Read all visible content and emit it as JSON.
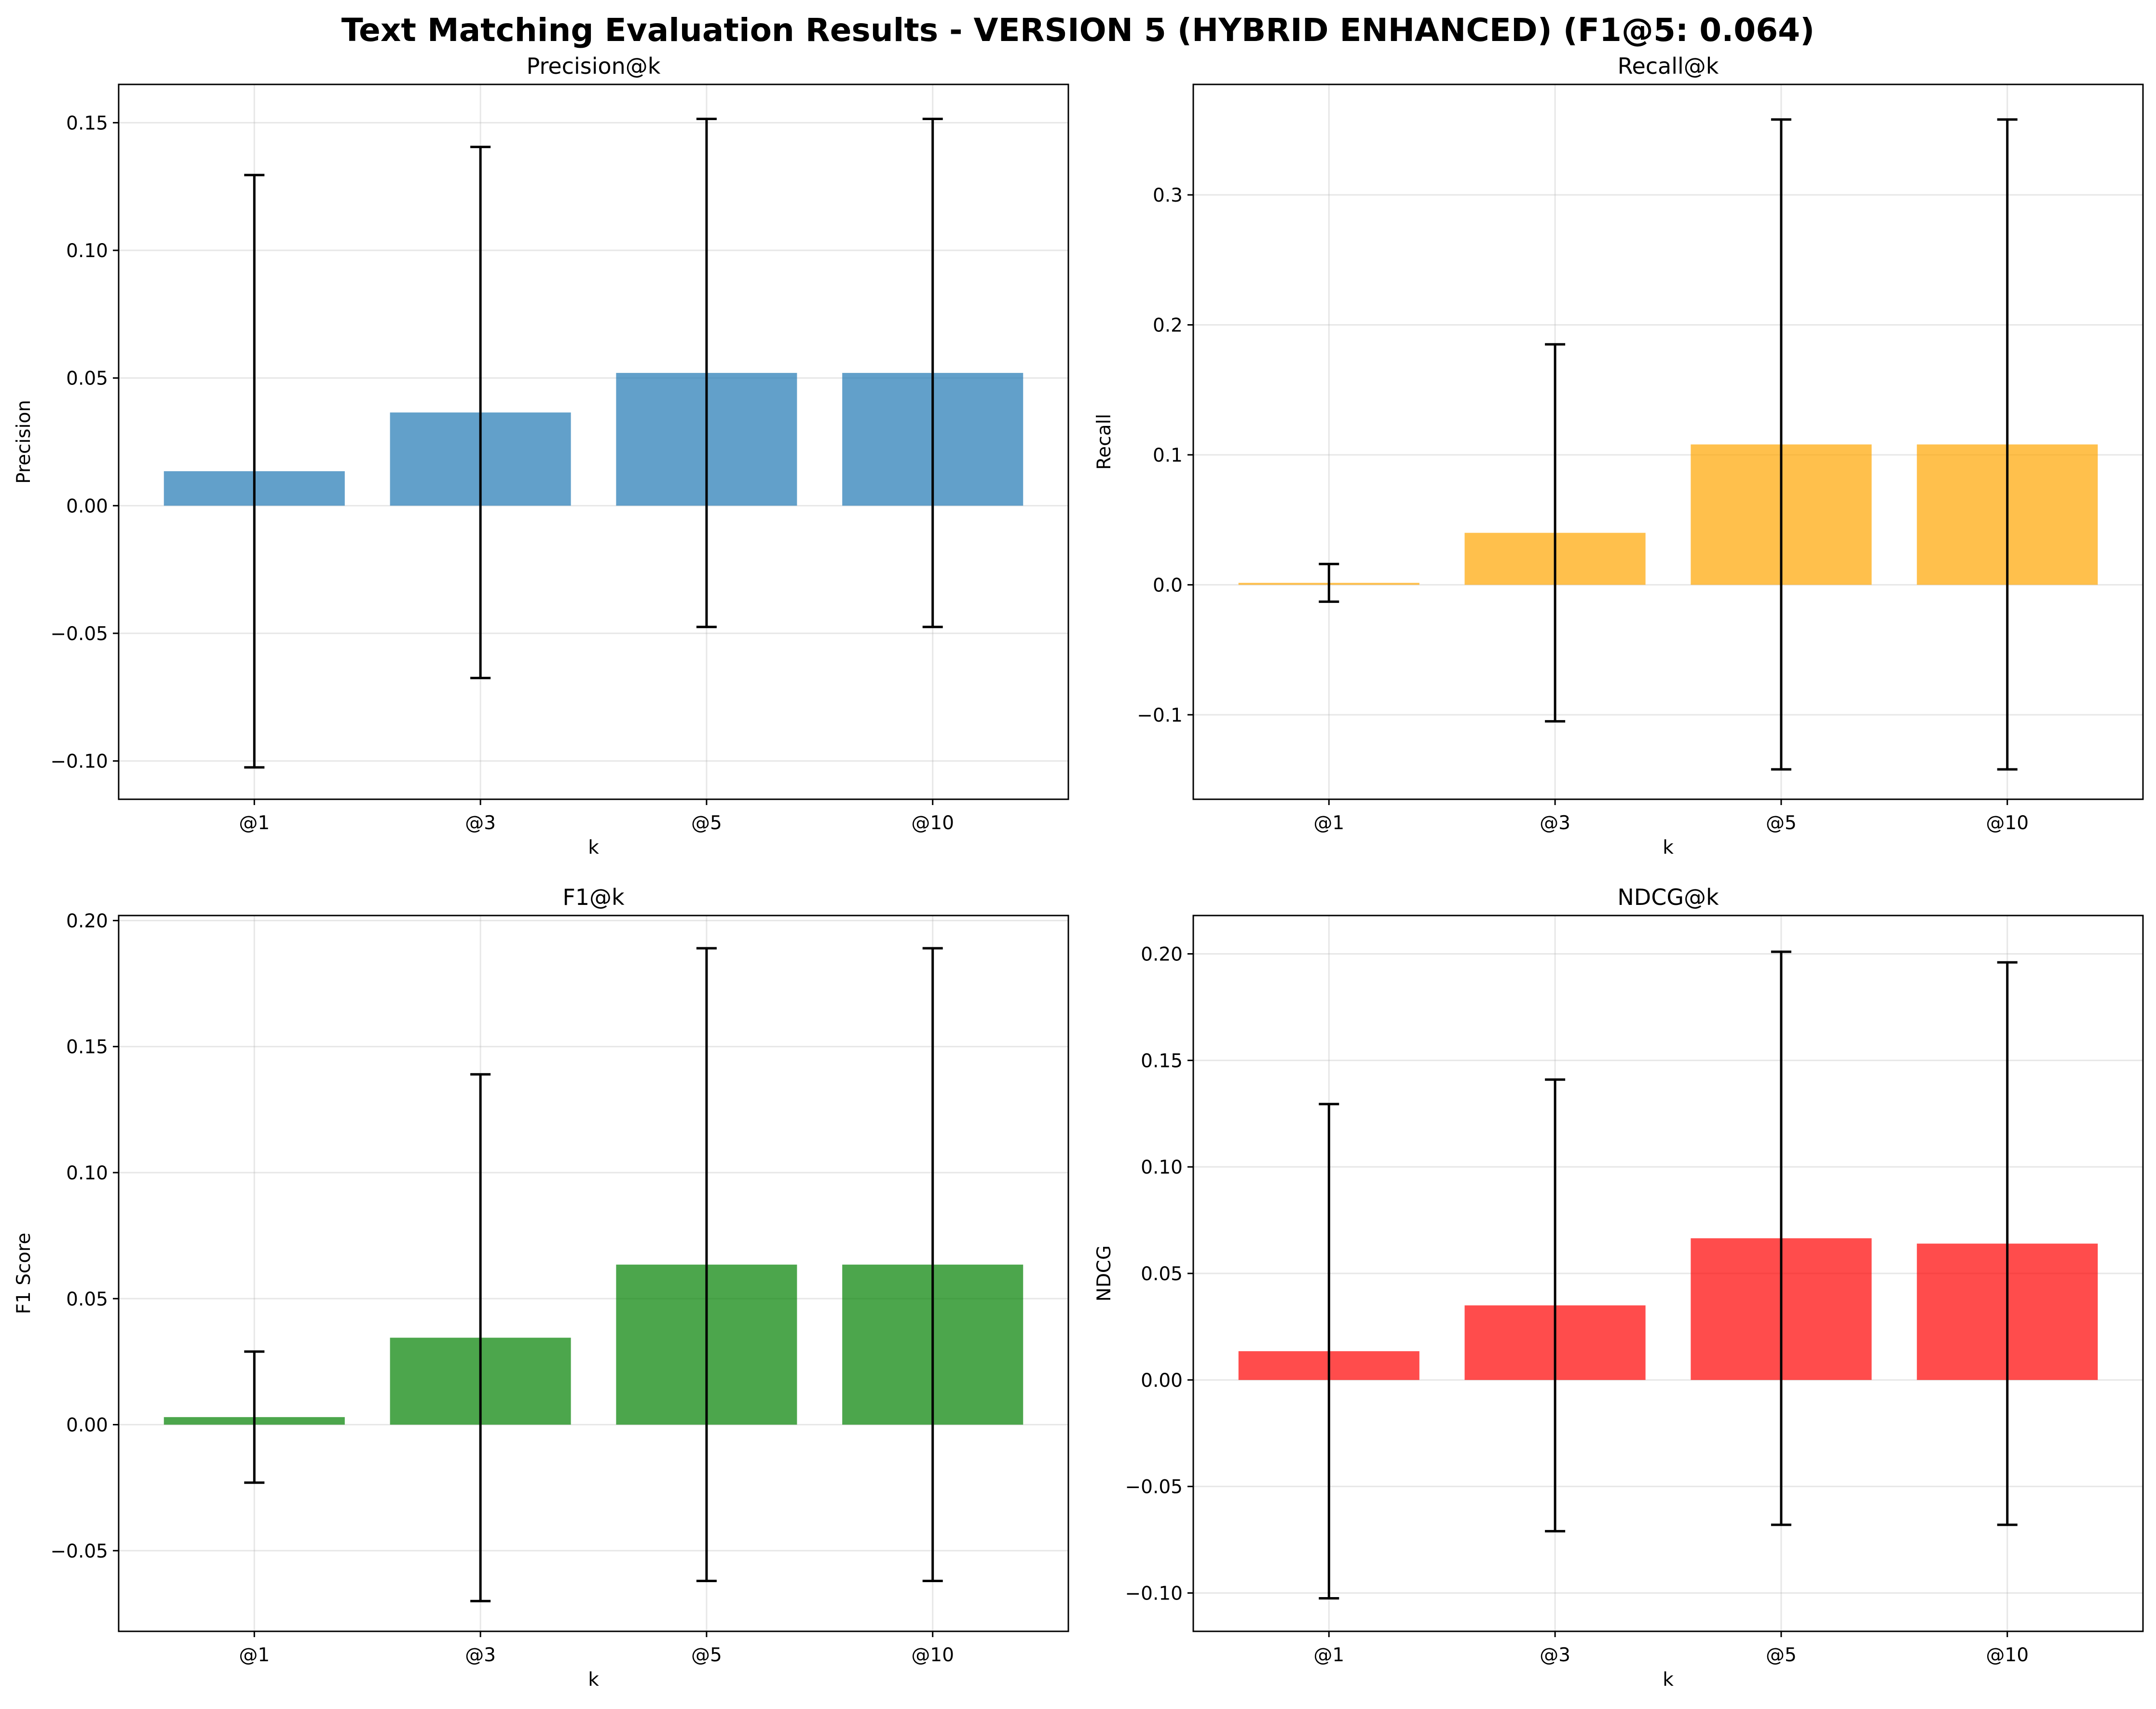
{
  "figure": {
    "suptitle": "Text Matching Evaluation Results - VERSION 5 (HYBRID ENHANCED) (F1@5: 0.064)"
  },
  "chart_data": [
    {
      "type": "bar",
      "title": "Precision@k",
      "xlabel": "k",
      "ylabel": "Precision",
      "categories": [
        "@1",
        "@3",
        "@5",
        "@10"
      ],
      "values": [
        0.0135,
        0.0365,
        0.052,
        0.052
      ],
      "error": [
        0.116,
        0.104,
        0.0995,
        0.0995
      ],
      "ylim": [
        -0.115,
        0.165
      ],
      "yticks": [
        -0.1,
        -0.05,
        0.0,
        0.05,
        0.1,
        0.15
      ],
      "ytick_labels": [
        "−0.10",
        "−0.05",
        "0.00",
        "0.05",
        "0.10",
        "0.15"
      ],
      "color": "#1f77b4",
      "grid": true
    },
    {
      "type": "bar",
      "title": "Recall@k",
      "xlabel": "k",
      "ylabel": "Recall",
      "categories": [
        "@1",
        "@3",
        "@5",
        "@10"
      ],
      "values": [
        0.0015,
        0.04,
        0.108,
        0.108
      ],
      "error": [
        0.0145,
        0.145,
        0.25,
        0.25
      ],
      "ylim": [
        -0.165,
        0.385
      ],
      "yticks": [
        -0.1,
        0.0,
        0.1,
        0.2,
        0.3
      ],
      "ytick_labels": [
        "−0.1",
        "0.0",
        "0.1",
        "0.2",
        "0.3"
      ],
      "color": "#ffa500",
      "grid": true
    },
    {
      "type": "bar",
      "title": "F1@k",
      "xlabel": "k",
      "ylabel": "F1 Score",
      "categories": [
        "@1",
        "@3",
        "@5",
        "@10"
      ],
      "values": [
        0.003,
        0.0345,
        0.0635,
        0.0635
      ],
      "error": [
        0.026,
        0.1045,
        0.1255,
        0.1255
      ],
      "ylim": [
        -0.082,
        0.202
      ],
      "yticks": [
        -0.05,
        0.0,
        0.05,
        0.1,
        0.15,
        0.2
      ],
      "ytick_labels": [
        "−0.05",
        "0.00",
        "0.05",
        "0.10",
        "0.15",
        "0.20"
      ],
      "color": "#008000",
      "grid": true
    },
    {
      "type": "bar",
      "title": "NDCG@k",
      "xlabel": "k",
      "ylabel": "NDCG",
      "categories": [
        "@1",
        "@3",
        "@5",
        "@10"
      ],
      "values": [
        0.0135,
        0.035,
        0.0665,
        0.064
      ],
      "error": [
        0.116,
        0.106,
        0.1345,
        0.132
      ],
      "ylim": [
        -0.118,
        0.218
      ],
      "yticks": [
        -0.1,
        -0.05,
        0.0,
        0.05,
        0.1,
        0.15,
        0.2
      ],
      "ytick_labels": [
        "−0.10",
        "−0.05",
        "0.00",
        "0.05",
        "0.10",
        "0.15",
        "0.20"
      ],
      "color": "#ff0000",
      "grid": true
    }
  ]
}
